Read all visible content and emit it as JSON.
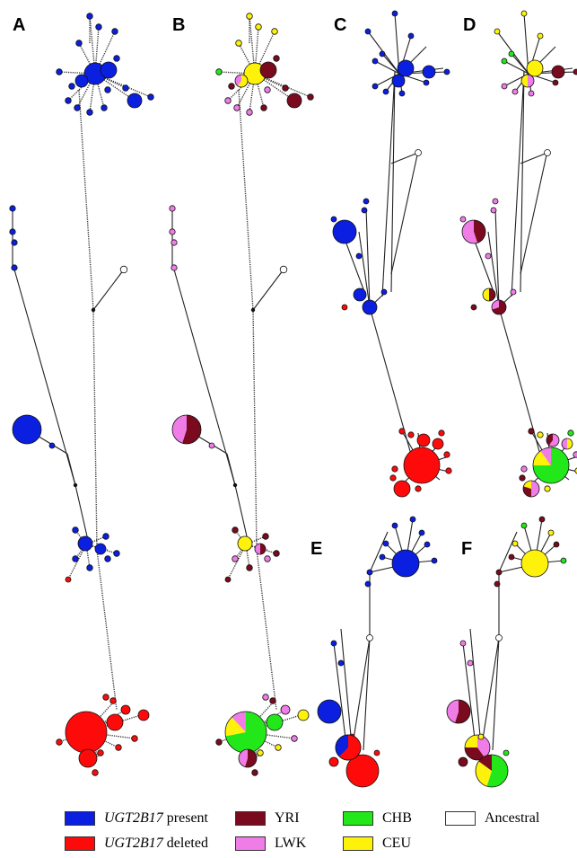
{
  "panels": [
    {
      "label": "A",
      "coloring": "UGT2B17 status"
    },
    {
      "label": "B",
      "coloring": "population"
    },
    {
      "label": "C",
      "coloring": "UGT2B17 status"
    },
    {
      "label": "D",
      "coloring": "population"
    },
    {
      "label": "E",
      "coloring": "UGT2B17 status"
    },
    {
      "label": "F",
      "coloring": "population"
    }
  ],
  "colors": {
    "present": "#0a1fe0",
    "deleted": "#ff0a0a",
    "YRI": "#7a0a1e",
    "LWK": "#f07ce8",
    "CHB": "#22e81a",
    "CEU": "#fff20a",
    "Ancestral": "#ffffff"
  },
  "legend": {
    "present_gene": "UGT2B17",
    "present_suffix": " present",
    "deleted_gene": "UGT2B17",
    "deleted_suffix": " deleted",
    "yri": "YRI",
    "lwk": "LWK",
    "chb": "CHB",
    "ceu": "CEU",
    "ancestral": "Ancestral"
  }
}
